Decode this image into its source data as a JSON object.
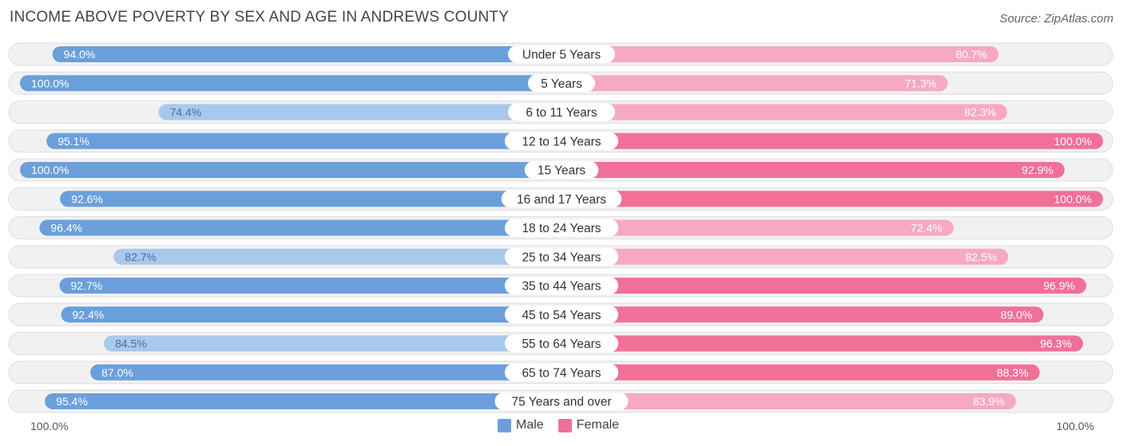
{
  "title": "INCOME ABOVE POVERTY BY SEX AND AGE IN ANDREWS COUNTY",
  "source": "Source: ZipAtlas.com",
  "axis": {
    "left_label": "100.0%",
    "right_label": "100.0%"
  },
  "colors": {
    "male_strong": "#6a9fdc",
    "male_light": "#a8c8ec",
    "female_strong": "#f07098",
    "female_light": "#f6a9c0",
    "row_bg": "#f1f1f1",
    "row_border": "#dedede"
  },
  "chart_data": {
    "type": "bar",
    "orientation": "horizontal-diverging",
    "title": "INCOME ABOVE POVERTY BY SEX AND AGE IN ANDREWS COUNTY",
    "categories": [
      "Under 5 Years",
      "5 Years",
      "6 to 11 Years",
      "12 to 14 Years",
      "15 Years",
      "16 and 17 Years",
      "18 to 24 Years",
      "25 to 34 Years",
      "35 to 44 Years",
      "45 to 54 Years",
      "55 to 64 Years",
      "65 to 74 Years",
      "75 Years and over"
    ],
    "series": [
      {
        "name": "Male",
        "values": [
          94.0,
          100.0,
          74.4,
          95.1,
          100.0,
          92.6,
          96.4,
          82.7,
          92.7,
          92.4,
          84.5,
          87.0,
          95.4
        ],
        "labels": [
          "94.0%",
          "100.0%",
          "74.4%",
          "95.1%",
          "100.0%",
          "92.6%",
          "96.4%",
          "82.7%",
          "92.7%",
          "92.4%",
          "84.5%",
          "87.0%",
          "95.4%"
        ]
      },
      {
        "name": "Female",
        "values": [
          80.7,
          71.3,
          82.3,
          100.0,
          92.9,
          100.0,
          72.4,
          82.5,
          96.9,
          89.0,
          96.3,
          88.3,
          83.9
        ],
        "labels": [
          "80.7%",
          "71.3%",
          "82.3%",
          "100.0%",
          "92.9%",
          "100.0%",
          "72.4%",
          "82.5%",
          "96.9%",
          "89.0%",
          "96.3%",
          "88.3%",
          "83.9%"
        ]
      }
    ],
    "xlim": [
      0,
      100
    ],
    "legend": {
      "position": "bottom-center",
      "entries": [
        "Male",
        "Female"
      ]
    }
  }
}
